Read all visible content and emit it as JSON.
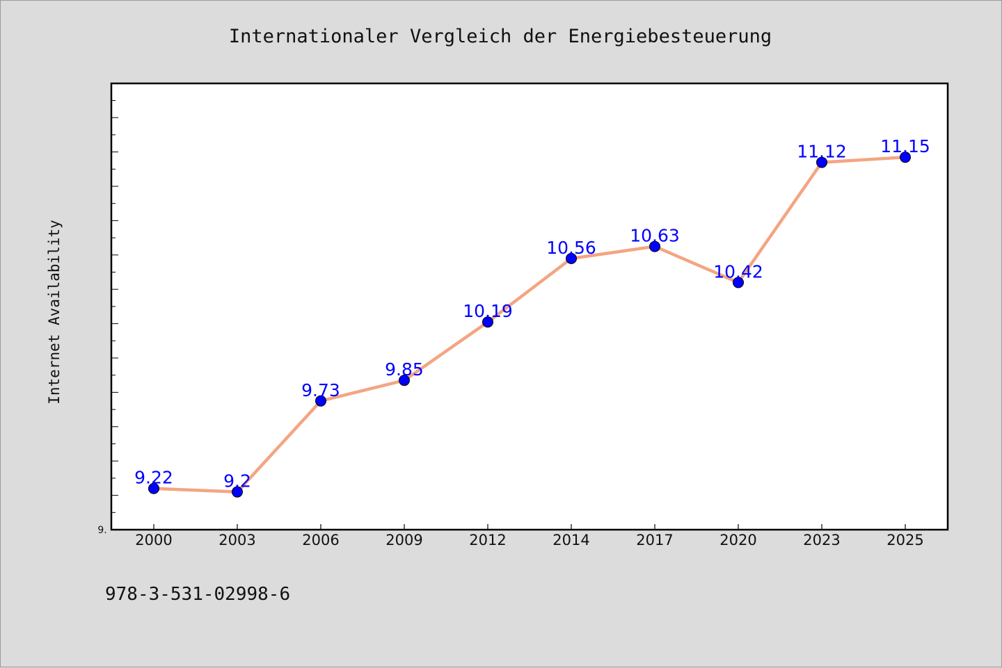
{
  "chart_data": {
    "type": "line",
    "title": "Internationaler Vergleich der Energiebesteuerung",
    "ylabel": "Internet Availability",
    "xlabel": "",
    "categories": [
      "2000",
      "2003",
      "2006",
      "2009",
      "2012",
      "2014",
      "2017",
      "2020",
      "2023",
      "2025"
    ],
    "series": [
      {
        "values": [
          9.22,
          9.2,
          9.73,
          9.85,
          10.19,
          10.56,
          10.63,
          10.42,
          11.12,
          11.15
        ],
        "labels": [
          "9.22",
          "9.2",
          "9.73",
          "9.85",
          "10.19",
          "10.56",
          "10.63",
          "10.42",
          "11.12",
          "11.15"
        ],
        "line_color": "#f4a582",
        "marker_color": "#0000ff"
      }
    ],
    "ylim": [
      8.98,
      11.58
    ],
    "ytick_label": "9.",
    "grid": false,
    "legend": "none"
  },
  "footer": {
    "code": "978-3-531-02998-6"
  }
}
